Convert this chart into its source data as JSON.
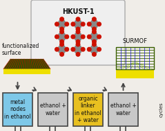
{
  "bg_color": "#f0ede8",
  "title": "HKUST-1",
  "surmof_label": "SURMOF",
  "func_surface_label": "functionalized\nsurface",
  "cycles_label": "cycles",
  "beaker_labels": [
    "metal\nnodes\nin ethanol",
    "ethanol +\nwater",
    "organic\nlinker\nin ethanol\n+ water",
    "ethanol +\nwater"
  ],
  "beaker_colors": [
    "#7ec8e8",
    "#c8c8c8",
    "#e8c020",
    "#c8c8c8"
  ],
  "border_color": "#444444",
  "arrow_color": "#333333",
  "hkust_box_color": "#efefef",
  "hkust_box_border": "#aaaaaa",
  "surface_yellow": "#eedf00",
  "surface_dark_green": "#2a5500",
  "surface_red": "#cc0000",
  "grid_green": "#7ab000",
  "grid_dark_green": "#3a6000",
  "grid_blue": "#1010cc",
  "grid_yellow": "#eedf00",
  "label_fontsize": 5.5,
  "title_fontsize": 7.0,
  "cycles_fontsize": 5.0,
  "atom_gray": "#888888",
  "atom_red": "#cc1100",
  "bond_color": "#666666"
}
